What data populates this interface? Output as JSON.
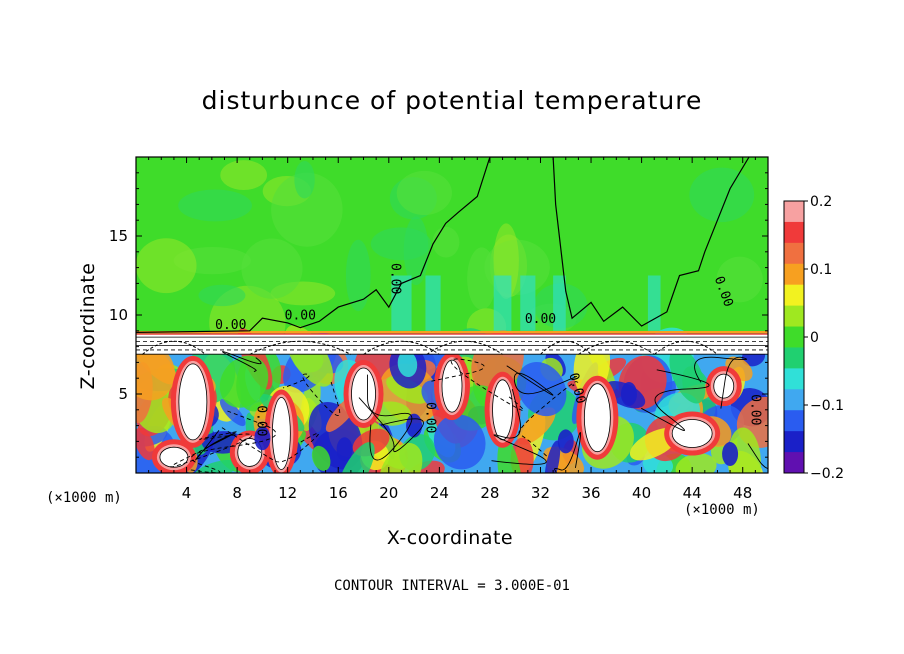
{
  "chart_data": {
    "type": "heatmap",
    "title": "disturbunce of potential temperature",
    "xlabel": "X-coordinate",
    "ylabel": "Z-coordinate",
    "x_unit": "(×1000 m)",
    "footer": "CONTOUR INTERVAL = 3.000E-01",
    "xlim": [
      0,
      50
    ],
    "ylim": [
      0,
      20
    ],
    "x_ticks": [
      4,
      8,
      12,
      16,
      20,
      24,
      28,
      32,
      36,
      40,
      44,
      48
    ],
    "y_ticks": [
      5,
      10,
      15
    ],
    "x_tick_labels": [
      "4",
      "8",
      "12",
      "16",
      "20",
      "24",
      "28",
      "32",
      "36",
      "40",
      "44",
      "48"
    ],
    "y_tick_labels": [
      "5",
      "10",
      "15"
    ],
    "colorbar": {
      "range": [
        -0.2,
        0.2
      ],
      "ticks": [
        0.2,
        0.1,
        0,
        -0.1,
        -0.2
      ],
      "tick_labels": [
        "0.2",
        "0.1",
        "0",
        "−0.1",
        "−0.2"
      ],
      "colors": [
        "#f7a1a1",
        "#f03a3a",
        "#f07040",
        "#f7a020",
        "#f2f220",
        "#9fe820",
        "#3fdc2a",
        "#20d070",
        "#30e0d8",
        "#40a8f0",
        "#2a5cf0",
        "#1a20c8",
        "#6010b0"
      ]
    },
    "contour_labels": [
      "0.00",
      "0.00",
      "0.00",
      "0.00",
      "0.00",
      "0.00",
      "0.00",
      "0.00",
      "0.00"
    ],
    "inversion_layer_z": 8.8,
    "mixed_layer_top_z": 7.5,
    "background_color": "#3fdc2a"
  }
}
